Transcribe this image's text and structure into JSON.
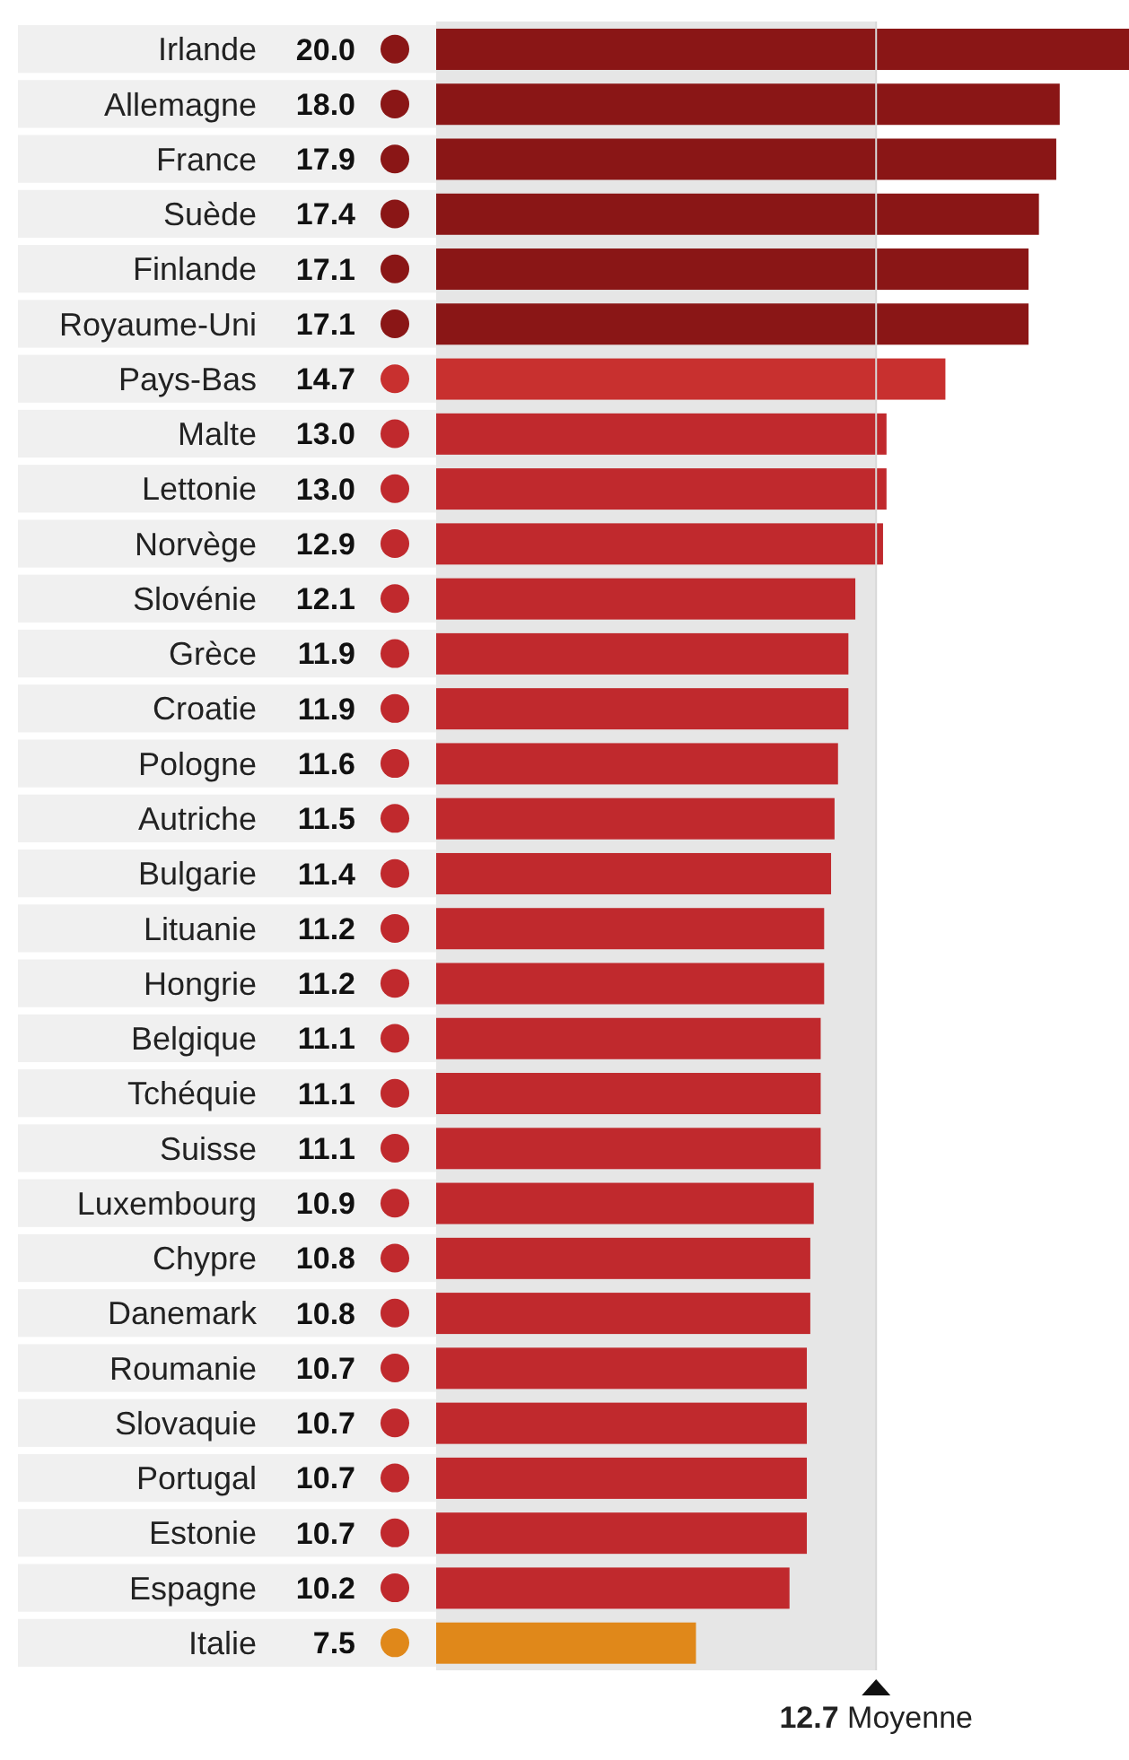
{
  "chart_data": {
    "type": "bar",
    "orientation": "horizontal",
    "categories": [
      "Irlande",
      "Allemagne",
      "France",
      "Suède",
      "Finlande",
      "Royaume-Uni",
      "Pays-Bas",
      "Malte",
      "Lettonie",
      "Norvège",
      "Slovénie",
      "Grèce",
      "Croatie",
      "Pologne",
      "Autriche",
      "Bulgarie",
      "Lituanie",
      "Hongrie",
      "Belgique",
      "Tchéquie",
      "Suisse",
      "Luxembourg",
      "Chypre",
      "Danemark",
      "Roumanie",
      "Slovaquie",
      "Portugal",
      "Estonie",
      "Espagne",
      "Italie"
    ],
    "values": [
      20.0,
      18.0,
      17.9,
      17.4,
      17.1,
      17.1,
      14.7,
      13.0,
      13.0,
      12.9,
      12.1,
      11.9,
      11.9,
      11.6,
      11.5,
      11.4,
      11.2,
      11.2,
      11.1,
      11.1,
      11.1,
      10.9,
      10.8,
      10.8,
      10.7,
      10.7,
      10.7,
      10.7,
      10.2,
      7.5
    ],
    "value_labels": [
      "20.0",
      "18.0",
      "17.9",
      "17.4",
      "17.1",
      "17.1",
      "14.7",
      "13.0",
      "13.0",
      "12.9",
      "12.1",
      "11.9",
      "11.9",
      "11.6",
      "11.5",
      "11.4",
      "11.2",
      "11.2",
      "11.1",
      "11.1",
      "11.1",
      "10.9",
      "10.8",
      "10.8",
      "10.7",
      "10.7",
      "10.7",
      "10.7",
      "10.2",
      "7.5"
    ],
    "colors": [
      "#8a1616",
      "#8a1616",
      "#8a1616",
      "#8a1616",
      "#8a1616",
      "#8a1616",
      "#c8302f",
      "#c0292d",
      "#c0292d",
      "#c0292d",
      "#c0292d",
      "#c0292d",
      "#c0292d",
      "#c0292d",
      "#c0292d",
      "#c0292d",
      "#c0292d",
      "#c0292d",
      "#c0292d",
      "#c0292d",
      "#c0292d",
      "#c0292d",
      "#c0292d",
      "#c0292d",
      "#c0292d",
      "#c0292d",
      "#c0292d",
      "#c0292d",
      "#c0292d",
      "#e0881a"
    ],
    "xlim": [
      0,
      20
    ],
    "ref_lines": [
      {
        "axis": "x",
        "value": 12.7,
        "label": "12.7 Moyenne",
        "color": "#d8d8d8"
      }
    ],
    "bands": [
      {
        "axis": "x",
        "from": 0,
        "to": 12.7,
        "color": "#e6e6e6"
      }
    ]
  }
}
